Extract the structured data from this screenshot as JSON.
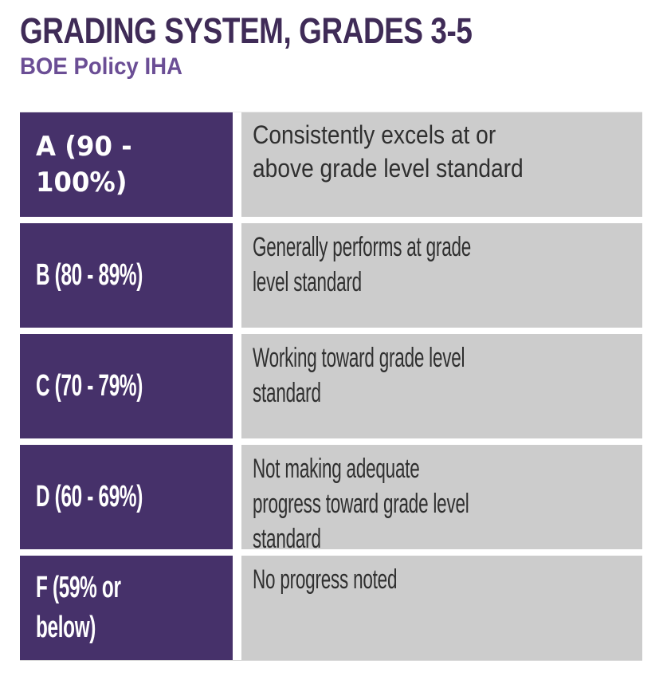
{
  "header": {
    "title": "GRADING SYSTEM, GRADES 3-5",
    "subtitle": "BOE Policy IHA"
  },
  "colors": {
    "title_text": "#3F2B57",
    "subtitle_text": "#6B4E95",
    "grade_cell_bg": "#46316A",
    "grade_cell_text": "#FFFFFF",
    "description_cell_bg": "#CCCCCC",
    "description_cell_text": "#2F2F2F"
  },
  "grading_table": {
    "rows": [
      {
        "grade": "A (90 - 100%)",
        "description": "Consistently excels at or\nabove grade level standard"
      },
      {
        "grade": "B (80 - 89%)",
        "description": "Generally performs at grade\nlevel standard"
      },
      {
        "grade": "C (70 - 79%)",
        "description": "Working toward grade level\nstandard"
      },
      {
        "grade": "D (60 - 69%)",
        "description": "Not making adequate\nprogress toward grade level\nstandard"
      },
      {
        "grade": "F (59% or\nbelow)",
        "description": "No progress noted"
      }
    ]
  }
}
